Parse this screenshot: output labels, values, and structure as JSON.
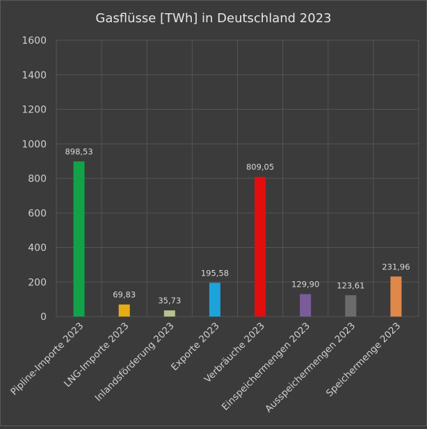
{
  "chart_data": {
    "type": "bar",
    "title": "Gasflüsse [TWh] in Deutschland 2023",
    "xlabel": "",
    "ylabel": "",
    "ylim": [
      0,
      1600
    ],
    "yticks": [
      0,
      200,
      400,
      600,
      800,
      1000,
      1200,
      1400,
      1600
    ],
    "grid": true,
    "categories": [
      "Pipline-Importe 2023",
      "LNG-Importe 2023",
      "Inlandsförderung 2023",
      "Exporte 2023",
      "Verbräuche 2023",
      "Einspeichermengen 2023",
      "Ausspeichermengen 2023",
      "Speichermenge 2023"
    ],
    "values": [
      898.53,
      69.83,
      35.73,
      195.58,
      809.05,
      129.9,
      123.61,
      231.96
    ],
    "value_labels": [
      "898,53",
      "69,83",
      "35,73",
      "195,58",
      "809,05",
      "129,90",
      "123,61",
      "231,96"
    ],
    "colors": [
      "#12a24a",
      "#e8ad14",
      "#b4c38f",
      "#1ca3dc",
      "#e20e0e",
      "#7b5c9a",
      "#6b6b6b",
      "#e0874a"
    ]
  }
}
